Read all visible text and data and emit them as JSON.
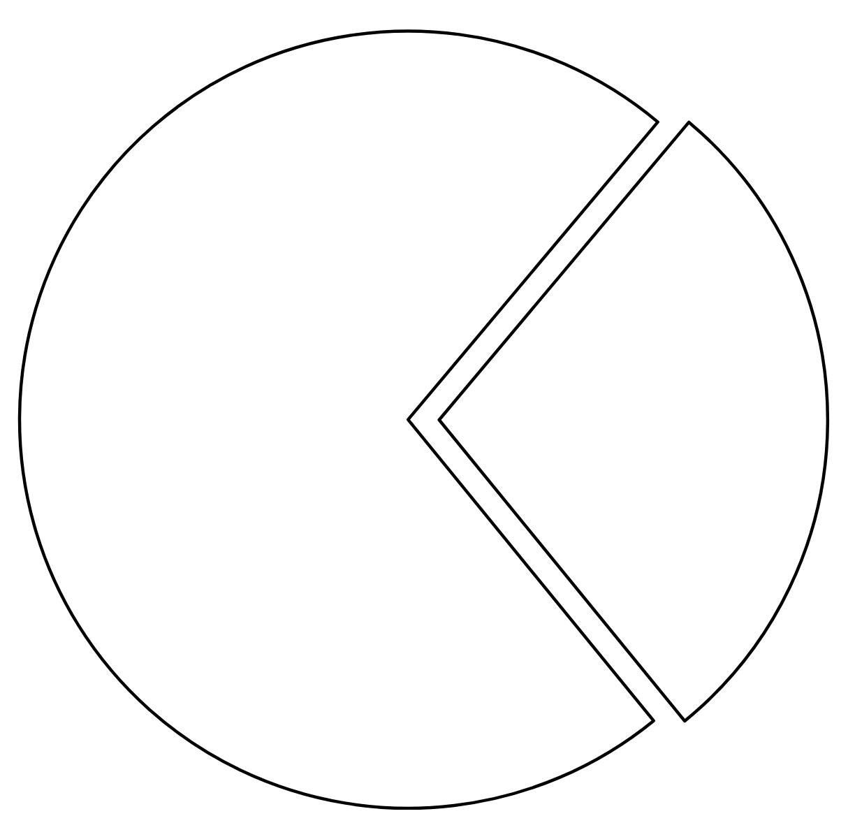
{
  "chart_data": {
    "type": "pie",
    "categories": [
      null,
      null
    ],
    "values": [
      28,
      72
    ],
    "colors": [
      "#ffffff",
      "#ffffff"
    ]
  }
}
